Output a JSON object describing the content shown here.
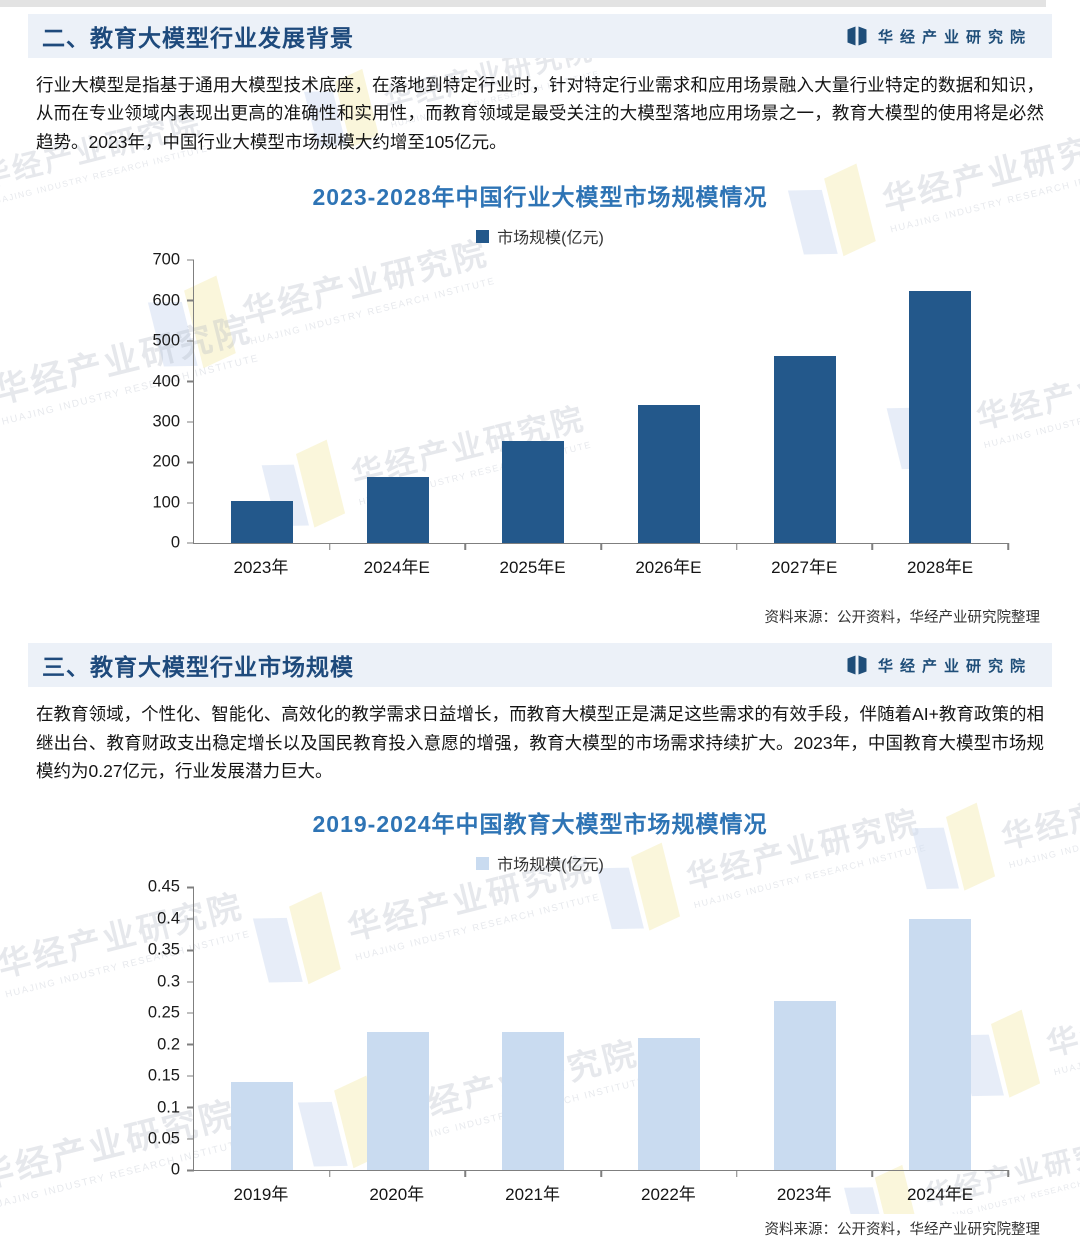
{
  "page": {
    "brand": "华经产业研究院",
    "watermark_text": "华经产业研究院",
    "watermark_subtext": "HUAJING INDUSTRY RESEARCH INSTITUTE"
  },
  "sections": [
    {
      "heading": "二、教育大模型行业发展背景",
      "paragraph": "行业大模型是指基于通用大模型技术底座，在落地到特定行业时，针对特定行业需求和应用场景融入大量行业特定的数据和知识，从而在专业领域内表现出更高的准确性和实用性，而教育领域是最受关注的大模型落地应用场景之一，教育大模型的使用将是必然趋势。2023年，中国行业大模型市场规模大约增至105亿元。"
    },
    {
      "heading": "三、教育大模型行业市场规模",
      "paragraph": "在教育领域，个性化、智能化、高效化的教学需求日益增长，而教育大模型正是满足这些需求的有效手段，伴随着AI+教育政策的相继出台、教育财政支出稳定增长以及国民教育投入意愿的增强，教育大模型的市场需求持续扩大。2023年，中国教育大模型市场规模约为0.27亿元，行业发展潜力巨大。"
    }
  ],
  "chart_data": [
    {
      "type": "bar",
      "title": "2023-2028年中国行业大模型市场规模情况",
      "legend": "市场规模(亿元)",
      "legend_position": "top",
      "bar_color": "#23588b",
      "categories": [
        "2023年",
        "2024年E",
        "2025年E",
        "2026年E",
        "2027年E",
        "2028年E"
      ],
      "values": [
        105,
        165,
        253,
        343,
        462,
        624
      ],
      "xlabel": "",
      "ylabel": "",
      "ylim": [
        0,
        700
      ],
      "yticks": [
        0,
        100,
        200,
        300,
        400,
        500,
        600,
        700
      ],
      "grid": false,
      "source": "资料来源：公开资料，华经产业研究院整理"
    },
    {
      "type": "bar",
      "title": "2019-2024年中国教育大模型市场规模情况",
      "legend": "市场规模(亿元)",
      "legend_position": "top",
      "bar_color": "#c9dbf0",
      "categories": [
        "2019年",
        "2020年",
        "2021年",
        "2022年",
        "2023年",
        "2024年E"
      ],
      "values": [
        0.14,
        0.22,
        0.22,
        0.21,
        0.27,
        0.4
      ],
      "xlabel": "",
      "ylabel": "",
      "ylim": [
        0,
        0.45
      ],
      "yticks": [
        0,
        0.05,
        0.1,
        0.15,
        0.2,
        0.25,
        0.3,
        0.35,
        0.4,
        0.45
      ],
      "grid": false,
      "source": "资料来源：公开资料，华经产业研究院整理"
    }
  ]
}
